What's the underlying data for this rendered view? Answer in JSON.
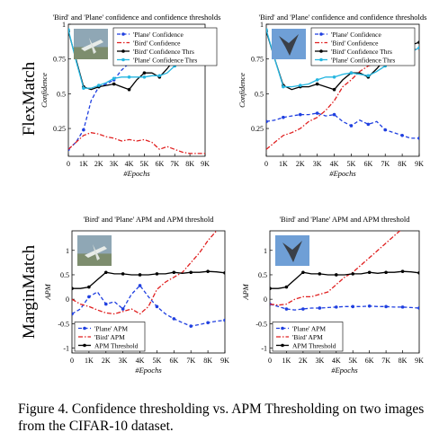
{
  "caption": "Figure 4. Confidence thresholding vs. APM Thresholding on two images from the CIFAR-10 dataset.",
  "row_labels": [
    "FlexMatch",
    "MarginMatch"
  ],
  "colors": {
    "plane": "#1f3fe0",
    "bird": "#e01f1f",
    "threshold": "#000000",
    "plane_thr": "#25b6e0"
  },
  "chart_data": [
    {
      "type": "line",
      "panel": "flexmatch-left",
      "title": "'Bird' and 'Plane' confidence and confidence thresholds",
      "xlabel": "#Epochs",
      "ylabel": "Confidence",
      "x_ticks": [
        "0",
        "1K",
        "2K",
        "3K",
        "4K",
        "5K",
        "6K",
        "7K",
        "8K",
        "9K"
      ],
      "y_ticks": [
        "0.25",
        "0.5",
        "0.75",
        "1"
      ],
      "xlim": [
        0,
        9000
      ],
      "ylim": [
        0.05,
        1.0
      ],
      "legend_position": "top-right",
      "x": [
        0,
        500,
        1000,
        1500,
        2000,
        2500,
        3000,
        3500,
        4000,
        4500,
        5000,
        5500,
        6000,
        6500,
        7000,
        7500,
        8000,
        8500,
        9000
      ],
      "series": [
        {
          "name": "'Plane' Confidence",
          "style": "dashed",
          "marker": "circle",
          "color": "#1f3fe0",
          "values": [
            0.1,
            0.15,
            0.24,
            0.45,
            0.55,
            0.57,
            0.6,
            0.67,
            0.72,
            0.78,
            0.83,
            0.82,
            0.82,
            0.81,
            0.81,
            0.8,
            0.82,
            0.85,
            0.88
          ]
        },
        {
          "name": "'Bird' Confidence",
          "style": "dashdot",
          "marker": "none",
          "color": "#e01f1f",
          "values": [
            0.1,
            0.15,
            0.2,
            0.22,
            0.21,
            0.19,
            0.18,
            0.16,
            0.17,
            0.16,
            0.17,
            0.15,
            0.1,
            0.12,
            0.1,
            0.08,
            0.07,
            0.07,
            0.07
          ]
        },
        {
          "name": "'Bird' Confidence Thrs",
          "style": "solid",
          "marker": "circle",
          "color": "#000000",
          "values": [
            0.95,
            0.75,
            0.55,
            0.53,
            0.55,
            0.56,
            0.57,
            0.55,
            0.53,
            0.6,
            0.65,
            0.65,
            0.62,
            0.68,
            0.75,
            0.78,
            0.8,
            0.83,
            0.87
          ]
        },
        {
          "name": "'Plane' Confidence Thrs",
          "style": "solid",
          "marker": "circle",
          "color": "#25b6e0",
          "values": [
            0.96,
            0.74,
            0.54,
            0.54,
            0.56,
            0.58,
            0.61,
            0.62,
            0.62,
            0.62,
            0.62,
            0.63,
            0.63,
            0.65,
            0.7,
            0.74,
            0.76,
            0.78,
            0.8
          ]
        }
      ]
    },
    {
      "type": "line",
      "panel": "flexmatch-right",
      "title": "'Bird' and 'Plane' confidence and confidence thresholds",
      "xlabel": "#Epochs",
      "ylabel": "Confidence",
      "x_ticks": [
        "0",
        "1K",
        "2K",
        "3K",
        "4K",
        "5K",
        "6K",
        "7K",
        "8K",
        "9K"
      ],
      "y_ticks": [
        "0.25",
        "0.5",
        "0.75",
        "1"
      ],
      "xlim": [
        0,
        9000
      ],
      "ylim": [
        0.05,
        1.0
      ],
      "legend_position": "top-right",
      "x": [
        0,
        500,
        1000,
        1500,
        2000,
        2500,
        3000,
        3500,
        4000,
        4500,
        5000,
        5500,
        6000,
        6500,
        7000,
        7500,
        8000,
        8500,
        9000
      ],
      "series": [
        {
          "name": "'Plane' Confidence",
          "style": "dashed",
          "marker": "circle",
          "color": "#1f3fe0",
          "values": [
            0.3,
            0.31,
            0.33,
            0.34,
            0.35,
            0.35,
            0.36,
            0.34,
            0.35,
            0.3,
            0.27,
            0.31,
            0.28,
            0.3,
            0.24,
            0.22,
            0.2,
            0.18,
            0.18
          ]
        },
        {
          "name": "'Bird' Confidence",
          "style": "dashdot",
          "marker": "none",
          "color": "#e01f1f",
          "values": [
            0.1,
            0.15,
            0.2,
            0.22,
            0.25,
            0.3,
            0.33,
            0.38,
            0.45,
            0.55,
            0.6,
            0.66,
            0.7,
            0.72,
            0.78,
            0.8,
            0.82,
            0.82,
            0.82
          ]
        },
        {
          "name": "'Bird' Confidence Thrs",
          "style": "solid",
          "marker": "circle",
          "color": "#000000",
          "values": [
            0.95,
            0.75,
            0.56,
            0.53,
            0.55,
            0.55,
            0.57,
            0.55,
            0.53,
            0.6,
            0.65,
            0.65,
            0.62,
            0.68,
            0.75,
            0.78,
            0.82,
            0.85,
            0.87
          ]
        },
        {
          "name": "'Plane' Confidence Thrs",
          "style": "solid",
          "marker": "circle",
          "color": "#25b6e0",
          "values": [
            0.96,
            0.75,
            0.55,
            0.55,
            0.56,
            0.57,
            0.6,
            0.62,
            0.62,
            0.64,
            0.65,
            0.64,
            0.63,
            0.66,
            0.7,
            0.74,
            0.77,
            0.8,
            0.83
          ]
        }
      ]
    },
    {
      "type": "line",
      "panel": "marginmatch-left",
      "title": "'Bird' and 'Plane' APM and APM threshold",
      "xlabel": "#Epochs",
      "ylabel": "APM",
      "x_ticks": [
        "0",
        "1K",
        "2K",
        "3K",
        "4K",
        "5K",
        "6K",
        "7K",
        "8K",
        "9K"
      ],
      "y_ticks": [
        "-1",
        "-0.5",
        "0",
        "0.5",
        "1"
      ],
      "xlim": [
        0,
        9000
      ],
      "ylim": [
        -1.1,
        1.4
      ],
      "legend_position": "bottom-left",
      "x": [
        0,
        500,
        1000,
        1500,
        2000,
        2500,
        3000,
        3500,
        4000,
        4500,
        5000,
        5500,
        6000,
        6500,
        7000,
        7500,
        8000,
        8500,
        9000
      ],
      "series": [
        {
          "name": "'Plane' APM",
          "style": "dashed",
          "marker": "circle",
          "color": "#1f3fe0",
          "values": [
            -0.3,
            -0.2,
            0.05,
            0.15,
            -0.1,
            -0.05,
            -0.2,
            0.1,
            0.28,
            0.05,
            -0.15,
            -0.3,
            -0.4,
            -0.48,
            -0.55,
            -0.52,
            -0.48,
            -0.45,
            -0.43
          ]
        },
        {
          "name": "'Bird' APM",
          "style": "dashdot",
          "marker": "none",
          "color": "#e01f1f",
          "values": [
            0.0,
            -0.1,
            -0.15,
            -0.22,
            -0.28,
            -0.3,
            -0.25,
            -0.2,
            -0.3,
            -0.15,
            0.2,
            0.35,
            0.45,
            0.55,
            0.75,
            0.95,
            1.2,
            1.4,
            1.6
          ]
        },
        {
          "name": "APM Threshold",
          "style": "solid",
          "marker": "circle",
          "color": "#000000",
          "values": [
            0.22,
            0.22,
            0.25,
            0.4,
            0.55,
            0.52,
            0.52,
            0.5,
            0.5,
            0.5,
            0.52,
            0.52,
            0.55,
            0.53,
            0.55,
            0.55,
            0.57,
            0.56,
            0.54
          ]
        }
      ]
    },
    {
      "type": "line",
      "panel": "marginmatch-right",
      "title": "'Bird' and 'Plane' APM and APM threshold",
      "xlabel": "#Epochs",
      "ylabel": "APM",
      "x_ticks": [
        "0",
        "1K",
        "2K",
        "3K",
        "4K",
        "5K",
        "6K",
        "7K",
        "8K",
        "9K"
      ],
      "y_ticks": [
        "-1",
        "-0.5",
        "0",
        "0.5",
        "1"
      ],
      "xlim": [
        0,
        9000
      ],
      "ylim": [
        -1.1,
        1.4
      ],
      "legend_position": "bottom-left",
      "x": [
        0,
        500,
        1000,
        1500,
        2000,
        2500,
        3000,
        3500,
        4000,
        4500,
        5000,
        5500,
        6000,
        6500,
        7000,
        7500,
        8000,
        8500,
        9000
      ],
      "series": [
        {
          "name": "'Plane' APM",
          "style": "dashed",
          "marker": "circle",
          "color": "#1f3fe0",
          "values": [
            -0.1,
            -0.15,
            -0.2,
            -0.22,
            -0.2,
            -0.18,
            -0.18,
            -0.17,
            -0.16,
            -0.15,
            -0.15,
            -0.15,
            -0.14,
            -0.15,
            -0.15,
            -0.16,
            -0.16,
            -0.17,
            -0.18
          ]
        },
        {
          "name": "'Bird' APM",
          "style": "dashdot",
          "marker": "none",
          "color": "#e01f1f",
          "values": [
            -0.1,
            -0.12,
            -0.1,
            0.0,
            0.05,
            0.05,
            0.1,
            0.15,
            0.3,
            0.45,
            0.55,
            0.7,
            0.85,
            1.0,
            1.15,
            1.3,
            1.45,
            1.6,
            1.7
          ]
        },
        {
          "name": "APM Threshold",
          "style": "solid",
          "marker": "circle",
          "color": "#000000",
          "values": [
            0.22,
            0.22,
            0.25,
            0.4,
            0.55,
            0.52,
            0.52,
            0.5,
            0.5,
            0.5,
            0.52,
            0.52,
            0.55,
            0.53,
            0.55,
            0.55,
            0.57,
            0.56,
            0.54
          ]
        }
      ]
    }
  ]
}
